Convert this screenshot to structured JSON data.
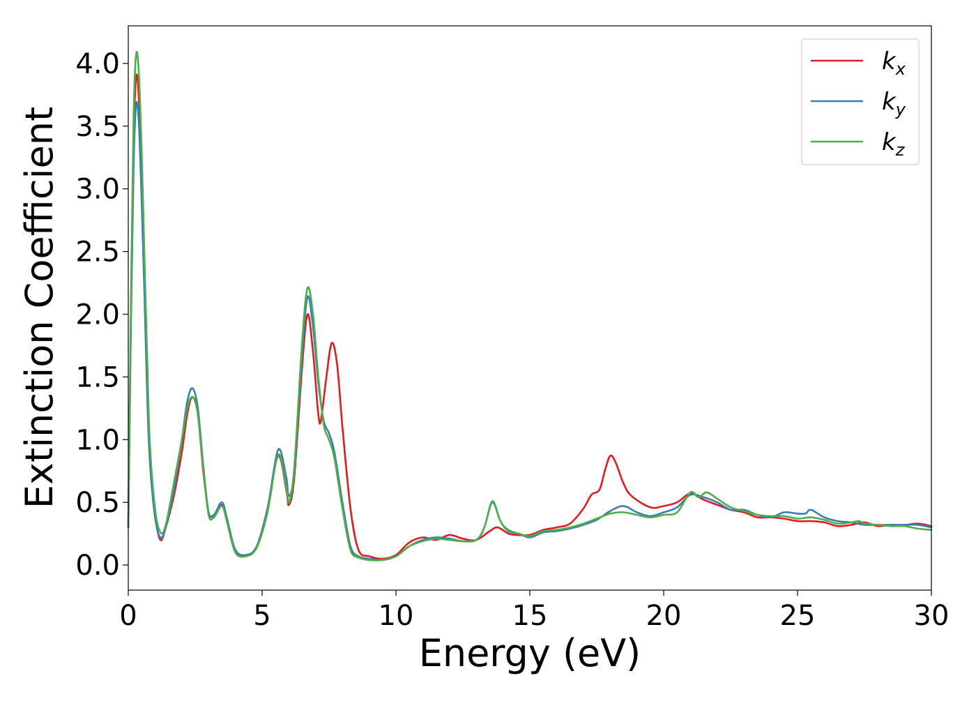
{
  "chart_data": {
    "type": "line",
    "xlabel": "Energy (eV)",
    "ylabel": "Extinction Coefficient",
    "xlim": [
      0,
      30
    ],
    "ylim": [
      -0.2,
      4.3
    ],
    "xticks": [
      0,
      5,
      10,
      15,
      20,
      25,
      30
    ],
    "xtick_labels": [
      "0",
      "5",
      "10",
      "15",
      "20",
      "25",
      "30"
    ],
    "yticks": [
      0.0,
      0.5,
      1.0,
      1.5,
      2.0,
      2.5,
      3.0,
      3.5,
      4.0
    ],
    "ytick_labels": [
      "0.0",
      "0.5",
      "1.0",
      "1.5",
      "2.0",
      "2.5",
      "3.0",
      "3.5",
      "4.0"
    ],
    "grid": false,
    "legend_position": "top-right",
    "series": [
      {
        "name": "k_x",
        "label_main": "k",
        "label_sub": "x",
        "color": "#e41a1c",
        "points": [
          [
            0,
            0.3
          ],
          [
            0.1,
            2.0
          ],
          [
            0.2,
            3.4
          ],
          [
            0.3,
            3.9
          ],
          [
            0.4,
            3.7
          ],
          [
            0.5,
            3.1
          ],
          [
            0.6,
            2.3
          ],
          [
            0.7,
            1.5
          ],
          [
            0.8,
            0.9
          ],
          [
            1.0,
            0.4
          ],
          [
            1.2,
            0.2
          ],
          [
            1.4,
            0.3
          ],
          [
            1.7,
            0.55
          ],
          [
            2.0,
            0.9
          ],
          [
            2.2,
            1.2
          ],
          [
            2.4,
            1.34
          ],
          [
            2.6,
            1.2
          ],
          [
            2.8,
            0.75
          ],
          [
            3.0,
            0.42
          ],
          [
            3.2,
            0.4
          ],
          [
            3.5,
            0.48
          ],
          [
            3.7,
            0.35
          ],
          [
            4.0,
            0.12
          ],
          [
            4.4,
            0.08
          ],
          [
            4.8,
            0.15
          ],
          [
            5.2,
            0.45
          ],
          [
            5.6,
            0.87
          ],
          [
            5.9,
            0.6
          ],
          [
            6.0,
            0.48
          ],
          [
            6.2,
            0.7
          ],
          [
            6.5,
            1.6
          ],
          [
            6.7,
            2.0
          ],
          [
            6.9,
            1.7
          ],
          [
            7.1,
            1.2
          ],
          [
            7.2,
            1.16
          ],
          [
            7.4,
            1.5
          ],
          [
            7.6,
            1.77
          ],
          [
            7.8,
            1.6
          ],
          [
            8.0,
            1.1
          ],
          [
            8.3,
            0.45
          ],
          [
            8.6,
            0.12
          ],
          [
            9.0,
            0.07
          ],
          [
            9.5,
            0.05
          ],
          [
            10.0,
            0.08
          ],
          [
            10.5,
            0.18
          ],
          [
            11.0,
            0.22
          ],
          [
            11.5,
            0.2
          ],
          [
            12.0,
            0.24
          ],
          [
            12.5,
            0.21
          ],
          [
            13.0,
            0.2
          ],
          [
            13.5,
            0.27
          ],
          [
            13.8,
            0.3
          ],
          [
            14.2,
            0.25
          ],
          [
            14.5,
            0.24
          ],
          [
            15.0,
            0.24
          ],
          [
            15.5,
            0.28
          ],
          [
            16.0,
            0.3
          ],
          [
            16.5,
            0.33
          ],
          [
            17.0,
            0.45
          ],
          [
            17.3,
            0.56
          ],
          [
            17.6,
            0.6
          ],
          [
            17.8,
            0.75
          ],
          [
            18.0,
            0.87
          ],
          [
            18.2,
            0.82
          ],
          [
            18.5,
            0.65
          ],
          [
            18.8,
            0.55
          ],
          [
            19.5,
            0.46
          ],
          [
            20.0,
            0.47
          ],
          [
            20.5,
            0.5
          ],
          [
            21.0,
            0.57
          ],
          [
            21.5,
            0.52
          ],
          [
            22.0,
            0.48
          ],
          [
            22.5,
            0.44
          ],
          [
            23.0,
            0.42
          ],
          [
            23.5,
            0.38
          ],
          [
            24.0,
            0.38
          ],
          [
            24.5,
            0.37
          ],
          [
            25.0,
            0.35
          ],
          [
            25.5,
            0.35
          ],
          [
            26.0,
            0.34
          ],
          [
            26.5,
            0.31
          ],
          [
            27.0,
            0.32
          ],
          [
            27.5,
            0.34
          ],
          [
            28.0,
            0.31
          ],
          [
            28.5,
            0.32
          ],
          [
            29.0,
            0.32
          ],
          [
            29.5,
            0.33
          ],
          [
            30.0,
            0.31
          ]
        ]
      },
      {
        "name": "k_y",
        "label_main": "k",
        "label_sub": "y",
        "color": "#377eb8",
        "points": [
          [
            0,
            0.3
          ],
          [
            0.1,
            1.9
          ],
          [
            0.2,
            3.2
          ],
          [
            0.3,
            3.68
          ],
          [
            0.4,
            3.5
          ],
          [
            0.5,
            2.9
          ],
          [
            0.6,
            2.2
          ],
          [
            0.7,
            1.4
          ],
          [
            0.8,
            0.85
          ],
          [
            1.0,
            0.38
          ],
          [
            1.2,
            0.22
          ],
          [
            1.4,
            0.3
          ],
          [
            1.7,
            0.6
          ],
          [
            2.0,
            1.0
          ],
          [
            2.2,
            1.3
          ],
          [
            2.4,
            1.41
          ],
          [
            2.6,
            1.25
          ],
          [
            2.8,
            0.8
          ],
          [
            3.0,
            0.42
          ],
          [
            3.2,
            0.4
          ],
          [
            3.5,
            0.5
          ],
          [
            3.7,
            0.36
          ],
          [
            4.0,
            0.12
          ],
          [
            4.4,
            0.08
          ],
          [
            4.8,
            0.15
          ],
          [
            5.2,
            0.45
          ],
          [
            5.6,
            0.92
          ],
          [
            5.9,
            0.7
          ],
          [
            6.0,
            0.55
          ],
          [
            6.2,
            0.75
          ],
          [
            6.5,
            1.7
          ],
          [
            6.7,
            2.14
          ],
          [
            6.9,
            1.9
          ],
          [
            7.1,
            1.45
          ],
          [
            7.3,
            1.15
          ],
          [
            7.5,
            1.05
          ],
          [
            7.7,
            0.9
          ],
          [
            8.0,
            0.5
          ],
          [
            8.3,
            0.15
          ],
          [
            8.6,
            0.07
          ],
          [
            9.0,
            0.05
          ],
          [
            9.5,
            0.04
          ],
          [
            10.0,
            0.07
          ],
          [
            10.5,
            0.15
          ],
          [
            11.0,
            0.2
          ],
          [
            11.5,
            0.22
          ],
          [
            12.0,
            0.21
          ],
          [
            12.5,
            0.19
          ],
          [
            13.0,
            0.2
          ],
          [
            13.3,
            0.3
          ],
          [
            13.6,
            0.5
          ],
          [
            13.9,
            0.35
          ],
          [
            14.2,
            0.27
          ],
          [
            14.6,
            0.25
          ],
          [
            15.0,
            0.22
          ],
          [
            15.5,
            0.26
          ],
          [
            16.0,
            0.27
          ],
          [
            16.5,
            0.29
          ],
          [
            17.0,
            0.32
          ],
          [
            17.5,
            0.36
          ],
          [
            18.0,
            0.43
          ],
          [
            18.5,
            0.47
          ],
          [
            19.0,
            0.42
          ],
          [
            19.5,
            0.39
          ],
          [
            20.0,
            0.42
          ],
          [
            20.5,
            0.46
          ],
          [
            21.0,
            0.56
          ],
          [
            21.5,
            0.54
          ],
          [
            22.0,
            0.5
          ],
          [
            22.5,
            0.44
          ],
          [
            23.0,
            0.44
          ],
          [
            23.5,
            0.4
          ],
          [
            24.0,
            0.38
          ],
          [
            24.5,
            0.42
          ],
          [
            25.0,
            0.41
          ],
          [
            25.3,
            0.41
          ],
          [
            25.5,
            0.44
          ],
          [
            26.0,
            0.38
          ],
          [
            26.5,
            0.35
          ],
          [
            27.0,
            0.34
          ],
          [
            27.5,
            0.32
          ],
          [
            28.0,
            0.32
          ],
          [
            28.5,
            0.32
          ],
          [
            29.0,
            0.32
          ],
          [
            29.5,
            0.32
          ],
          [
            30.0,
            0.3
          ]
        ]
      },
      {
        "name": "k_z",
        "label_main": "k",
        "label_sub": "z",
        "color": "#4daf4a",
        "points": [
          [
            0,
            0.3
          ],
          [
            0.1,
            2.1
          ],
          [
            0.2,
            3.6
          ],
          [
            0.3,
            4.08
          ],
          [
            0.4,
            3.9
          ],
          [
            0.5,
            3.3
          ],
          [
            0.6,
            2.5
          ],
          [
            0.7,
            1.7
          ],
          [
            0.8,
            1.0
          ],
          [
            1.0,
            0.45
          ],
          [
            1.2,
            0.26
          ],
          [
            1.4,
            0.32
          ],
          [
            1.7,
            0.65
          ],
          [
            2.0,
            1.0
          ],
          [
            2.2,
            1.25
          ],
          [
            2.4,
            1.34
          ],
          [
            2.6,
            1.2
          ],
          [
            2.8,
            0.78
          ],
          [
            3.0,
            0.4
          ],
          [
            3.2,
            0.38
          ],
          [
            3.5,
            0.47
          ],
          [
            3.7,
            0.33
          ],
          [
            4.0,
            0.1
          ],
          [
            4.4,
            0.07
          ],
          [
            4.8,
            0.14
          ],
          [
            5.2,
            0.42
          ],
          [
            5.6,
            0.88
          ],
          [
            5.9,
            0.62
          ],
          [
            6.0,
            0.5
          ],
          [
            6.2,
            0.78
          ],
          [
            6.5,
            1.8
          ],
          [
            6.7,
            2.21
          ],
          [
            6.9,
            2.0
          ],
          [
            7.1,
            1.5
          ],
          [
            7.3,
            1.12
          ],
          [
            7.5,
            1.0
          ],
          [
            7.7,
            0.85
          ],
          [
            8.0,
            0.45
          ],
          [
            8.3,
            0.12
          ],
          [
            8.6,
            0.06
          ],
          [
            9.0,
            0.04
          ],
          [
            9.5,
            0.04
          ],
          [
            10.0,
            0.07
          ],
          [
            10.5,
            0.15
          ],
          [
            11.0,
            0.19
          ],
          [
            11.5,
            0.21
          ],
          [
            12.0,
            0.2
          ],
          [
            12.5,
            0.19
          ],
          [
            13.0,
            0.2
          ],
          [
            13.3,
            0.3
          ],
          [
            13.6,
            0.51
          ],
          [
            13.9,
            0.35
          ],
          [
            14.2,
            0.28
          ],
          [
            14.6,
            0.25
          ],
          [
            15.0,
            0.23
          ],
          [
            15.5,
            0.27
          ],
          [
            16.0,
            0.28
          ],
          [
            16.5,
            0.3
          ],
          [
            17.0,
            0.33
          ],
          [
            17.5,
            0.37
          ],
          [
            18.0,
            0.41
          ],
          [
            18.5,
            0.42
          ],
          [
            19.0,
            0.4
          ],
          [
            19.5,
            0.38
          ],
          [
            20.0,
            0.4
          ],
          [
            20.5,
            0.42
          ],
          [
            21.0,
            0.58
          ],
          [
            21.3,
            0.54
          ],
          [
            21.6,
            0.58
          ],
          [
            22.0,
            0.53
          ],
          [
            22.5,
            0.46
          ],
          [
            23.0,
            0.43
          ],
          [
            23.5,
            0.4
          ],
          [
            24.0,
            0.39
          ],
          [
            24.5,
            0.39
          ],
          [
            25.0,
            0.37
          ],
          [
            25.5,
            0.38
          ],
          [
            26.0,
            0.36
          ],
          [
            26.5,
            0.33
          ],
          [
            27.0,
            0.34
          ],
          [
            27.3,
            0.35
          ],
          [
            27.5,
            0.33
          ],
          [
            28.0,
            0.32
          ],
          [
            28.5,
            0.31
          ],
          [
            29.0,
            0.31
          ],
          [
            29.5,
            0.29
          ],
          [
            30.0,
            0.28
          ]
        ]
      }
    ]
  }
}
